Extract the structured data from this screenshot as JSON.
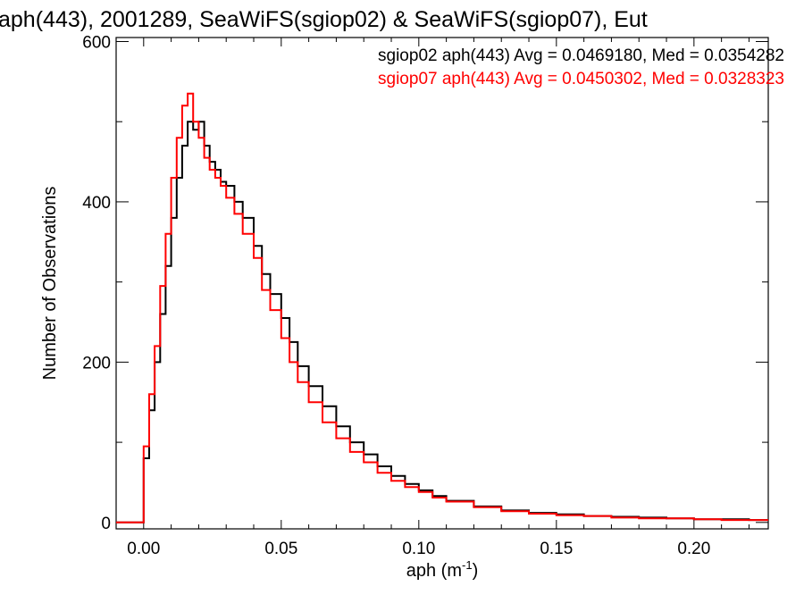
{
  "chart_data": {
    "type": "line",
    "step": true,
    "title": "aph(443), 2001289, SeaWiFS(sgiop02) & SeaWiFS(sgiop07), Eut",
    "xlabel": "aph (m",
    "xlabel_superscript": "-1",
    "xlabel_suffix": ")",
    "ylabel": "Number of Observations",
    "xlim": [
      -0.01,
      0.227
    ],
    "ylim": [
      -8,
      605
    ],
    "x_ticks": [
      0.0,
      0.05,
      0.1,
      0.15,
      0.2
    ],
    "x_tick_labels": [
      "0.00",
      "0.05",
      "0.10",
      "0.15",
      "0.20"
    ],
    "y_ticks": [
      0,
      200,
      400,
      600
    ],
    "y_tick_labels": [
      "0",
      "200",
      "400",
      "600"
    ],
    "legend_placement": "top-right",
    "legend": [
      {
        "text": "sgiop02 aph(443) Avg = 0.0469180, Med = 0.0354282",
        "color": "#000000"
      },
      {
        "text": "sgiop07 aph(443) Avg = 0.0450302, Med = 0.0328323",
        "color": "#ff0000"
      }
    ],
    "series": [
      {
        "name": "sgiop02",
        "color": "#000000",
        "x": [
          -0.01,
          -0.001,
          0.0,
          0.002,
          0.004,
          0.006,
          0.008,
          0.01,
          0.012,
          0.014,
          0.016,
          0.018,
          0.02,
          0.022,
          0.024,
          0.026,
          0.028,
          0.03,
          0.033,
          0.036,
          0.04,
          0.043,
          0.046,
          0.05,
          0.053,
          0.056,
          0.06,
          0.065,
          0.07,
          0.075,
          0.08,
          0.085,
          0.09,
          0.095,
          0.1,
          0.105,
          0.11,
          0.12,
          0.13,
          0.14,
          0.15,
          0.16,
          0.17,
          0.18,
          0.19,
          0.2,
          0.21,
          0.22,
          0.227
        ],
        "values": [
          0,
          0,
          80,
          140,
          200,
          260,
          320,
          380,
          430,
          470,
          500,
          490,
          500,
          470,
          450,
          440,
          425,
          420,
          400,
          380,
          345,
          310,
          285,
          255,
          225,
          195,
          170,
          145,
          120,
          100,
          85,
          70,
          58,
          48,
          40,
          33,
          27,
          20,
          15,
          12,
          10,
          8,
          7,
          6,
          5,
          4,
          4,
          3,
          3
        ]
      },
      {
        "name": "sgiop07",
        "color": "#ff0000",
        "x": [
          -0.01,
          -0.001,
          0.0,
          0.002,
          0.004,
          0.006,
          0.008,
          0.01,
          0.012,
          0.014,
          0.016,
          0.018,
          0.02,
          0.022,
          0.024,
          0.026,
          0.028,
          0.03,
          0.033,
          0.036,
          0.04,
          0.043,
          0.046,
          0.05,
          0.053,
          0.056,
          0.06,
          0.065,
          0.07,
          0.075,
          0.08,
          0.085,
          0.09,
          0.095,
          0.1,
          0.105,
          0.11,
          0.12,
          0.13,
          0.14,
          0.15,
          0.16,
          0.17,
          0.18,
          0.19,
          0.2,
          0.21,
          0.22,
          0.227
        ],
        "values": [
          0,
          0,
          95,
          160,
          220,
          295,
          360,
          430,
          480,
          520,
          535,
          500,
          480,
          455,
          440,
          430,
          420,
          405,
          385,
          360,
          330,
          290,
          265,
          230,
          200,
          175,
          150,
          125,
          105,
          88,
          75,
          62,
          52,
          44,
          38,
          31,
          26,
          19,
          14,
          11,
          9,
          8,
          6,
          5,
          5,
          4,
          3,
          3,
          3
        ]
      }
    ]
  }
}
